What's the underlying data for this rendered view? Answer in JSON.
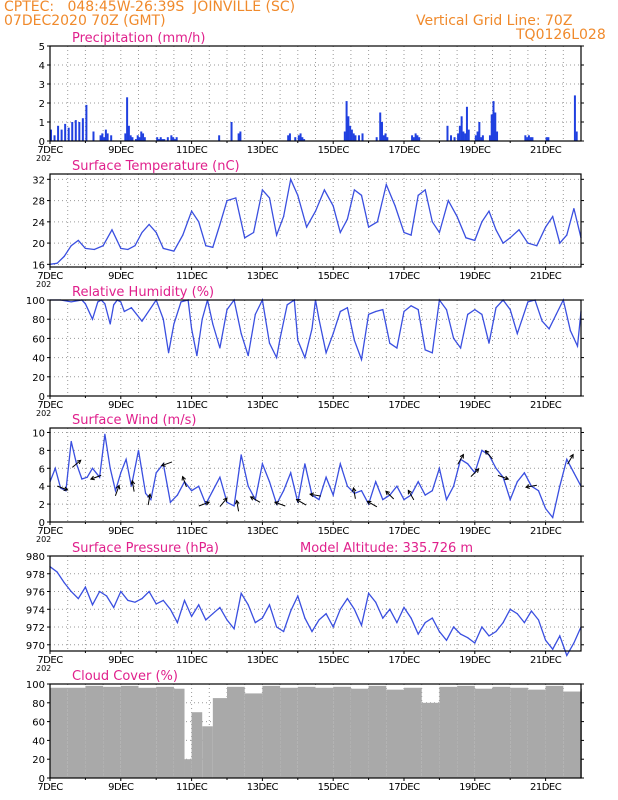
{
  "header": {
    "line1": "CPTEC:   048:45W-26:39S  JOINVILLE (SC)",
    "line2": "07DEC2020 70Z (GMT)",
    "vertical_grid": "Vertical Grid Line: 70Z",
    "code": "TQ0126L028",
    "model_altitude": "Model Altitude: 335.726 m"
  },
  "colors": {
    "header": "#f08a2c",
    "title": "#e0208c",
    "line": "#3a4fe0",
    "bar": "#2040e0",
    "cloud": "#a9a9a9"
  },
  "x_ticks": [
    "7DEC",
    "9DEC",
    "11DEC",
    "13DEC",
    "15DEC",
    "17DEC",
    "19DEC",
    "21DEC"
  ],
  "x_tick_stub": "202",
  "chart_data": [
    {
      "type": "bar",
      "title": "Precipitation (mm/h)",
      "ylim": [
        0,
        5
      ],
      "y_ticks": [
        "0",
        "1",
        "2",
        "3",
        "4",
        "5"
      ],
      "x_days": [
        0,
        0.1,
        0.2,
        0.3,
        0.4,
        0.5,
        0.6,
        0.7,
        0.8,
        0.9,
        1.0,
        1.2,
        1.4,
        1.45,
        1.5,
        1.55,
        1.6,
        1.7,
        2.1,
        2.15,
        2.2,
        2.25,
        2.3,
        2.4,
        2.45,
        2.5,
        2.55,
        2.6,
        2.65,
        3.0,
        3.05,
        3.1,
        3.15,
        3.2,
        3.3,
        3.4,
        3.45,
        3.5,
        3.55,
        4.75,
        5.1,
        5.3,
        5.35,
        6.7,
        6.75,
        6.9,
        7.0,
        7.05,
        7.1,
        7.15,
        8.3,
        8.35,
        8.4,
        8.45,
        8.5,
        8.55,
        8.6,
        8.7,
        8.8,
        9.2,
        9.3,
        9.35,
        9.4,
        9.45,
        9.5,
        10.2,
        10.25,
        10.3,
        10.35,
        10.4,
        11.2,
        11.3,
        11.4,
        11.5,
        11.55,
        11.6,
        11.65,
        11.7,
        11.75,
        11.8,
        12.0,
        12.05,
        12.1,
        12.15,
        12.2,
        12.4,
        12.45,
        12.5,
        12.55,
        12.6,
        13.4,
        13.45,
        13.5,
        13.55,
        13.6,
        14.0,
        14.05,
        14.8,
        14.85
      ],
      "values": [
        0.6,
        0.3,
        0.8,
        0.6,
        0.9,
        0.7,
        1.0,
        1.1,
        1.0,
        1.2,
        1.9,
        0.5,
        0.3,
        0.4,
        0.2,
        0.6,
        0.4,
        0.3,
        0.4,
        2.3,
        0.8,
        0.3,
        0.2,
        0.1,
        0.3,
        0.2,
        0.5,
        0.4,
        0.2,
        0.2,
        0.1,
        0.2,
        0.1,
        0.1,
        0.2,
        0.3,
        0.2,
        0.1,
        0.2,
        0.3,
        1.0,
        0.4,
        0.5,
        0.3,
        0.4,
        0.2,
        0.3,
        0.4,
        0.2,
        0.1,
        0.5,
        2.1,
        1.3,
        0.8,
        0.6,
        0.4,
        0.3,
        0.3,
        0.4,
        0.2,
        1.5,
        1.0,
        0.3,
        0.4,
        0.2,
        0.3,
        0.2,
        0.4,
        0.3,
        0.2,
        0.8,
        0.3,
        0.2,
        0.4,
        0.8,
        1.3,
        0.5,
        0.4,
        1.8,
        0.6,
        0.3,
        0.5,
        1.0,
        0.2,
        0.3,
        0.3,
        1.4,
        2.1,
        1.5,
        0.5,
        0.3,
        0.2,
        0.3,
        0.2,
        0.2,
        0.2,
        0.2,
        2.4,
        0.5
      ]
    },
    {
      "type": "line",
      "title": "Surface Temperature (nC)",
      "ylim": [
        15.5,
        33
      ],
      "y_ticks": [
        "16",
        "20",
        "24",
        "28",
        "32"
      ],
      "x_days": [
        0,
        0.2,
        0.4,
        0.6,
        0.8,
        1.0,
        1.25,
        1.5,
        1.75,
        2.0,
        2.2,
        2.4,
        2.6,
        2.8,
        3.0,
        3.2,
        3.5,
        3.75,
        4.0,
        4.2,
        4.4,
        4.6,
        4.8,
        5.0,
        5.25,
        5.5,
        5.75,
        6.0,
        6.2,
        6.4,
        6.6,
        6.8,
        7.0,
        7.25,
        7.5,
        7.75,
        8.0,
        8.2,
        8.4,
        8.6,
        8.8,
        9.0,
        9.25,
        9.5,
        9.75,
        10.0,
        10.2,
        10.4,
        10.6,
        10.8,
        11.0,
        11.25,
        11.5,
        11.75,
        12.0,
        12.2,
        12.4,
        12.6,
        12.8,
        13.0,
        13.25,
        13.5,
        13.75,
        14.0,
        14.2,
        14.4,
        14.6,
        14.8,
        15.0
      ],
      "values": [
        16.0,
        16.2,
        17.5,
        19.5,
        20.5,
        19.0,
        18.8,
        19.5,
        22.5,
        19.0,
        18.8,
        19.5,
        22.0,
        23.5,
        22.0,
        19.0,
        18.5,
        21.5,
        26.0,
        24.0,
        19.5,
        19.2,
        23.5,
        28.0,
        28.5,
        21.0,
        22.0,
        30.0,
        28.5,
        21.5,
        25.0,
        32.0,
        29.0,
        23.0,
        26.0,
        30.0,
        27.0,
        22.0,
        24.5,
        30.0,
        29.0,
        23.0,
        24.0,
        31.0,
        27.0,
        22.0,
        21.5,
        29.0,
        30.0,
        24.0,
        22.0,
        28.0,
        25.0,
        21.0,
        20.5,
        24.0,
        26.0,
        22.5,
        20.0,
        21.0,
        22.5,
        20.0,
        19.5,
        23.0,
        25.0,
        20.0,
        21.5,
        26.5,
        21.0
      ]
    },
    {
      "type": "line",
      "title": "Relative Humidity (%)",
      "ylim": [
        0,
        100
      ],
      "y_ticks": [
        "0",
        "20",
        "40",
        "60",
        "80",
        "100"
      ],
      "x_days": [
        0,
        0.3,
        0.6,
        0.9,
        1.0,
        1.2,
        1.35,
        1.45,
        1.55,
        1.7,
        1.8,
        1.9,
        2.0,
        2.1,
        2.3,
        2.6,
        3.0,
        3.2,
        3.35,
        3.5,
        3.7,
        3.9,
        4.0,
        4.15,
        4.3,
        4.45,
        4.6,
        4.8,
        5.0,
        5.2,
        5.4,
        5.6,
        5.8,
        6.0,
        6.2,
        6.4,
        6.5,
        6.7,
        6.9,
        7.0,
        7.2,
        7.4,
        7.5,
        7.6,
        7.8,
        8.0,
        8.2,
        8.4,
        8.6,
        8.8,
        9.0,
        9.2,
        9.4,
        9.6,
        9.8,
        10.0,
        10.2,
        10.4,
        10.6,
        10.8,
        11.0,
        11.2,
        11.4,
        11.6,
        11.8,
        12.0,
        12.2,
        12.4,
        12.6,
        12.8,
        13.0,
        13.2,
        13.5,
        13.7,
        13.9,
        14.1,
        14.3,
        14.5,
        14.7,
        14.9,
        15.0
      ],
      "values": [
        100,
        100,
        98,
        100,
        96,
        80,
        98,
        100,
        96,
        75,
        95,
        100,
        98,
        88,
        92,
        78,
        100,
        80,
        45,
        75,
        98,
        100,
        70,
        42,
        80,
        100,
        75,
        50,
        90,
        100,
        65,
        42,
        85,
        100,
        55,
        40,
        60,
        95,
        100,
        58,
        40,
        70,
        100,
        80,
        45,
        65,
        88,
        92,
        58,
        38,
        85,
        88,
        90,
        55,
        50,
        88,
        94,
        90,
        48,
        45,
        100,
        90,
        60,
        50,
        85,
        90,
        85,
        55,
        92,
        100,
        90,
        65,
        98,
        100,
        78,
        70,
        85,
        100,
        68,
        52,
        88
      ]
    },
    {
      "type": "line",
      "title": "Surface Wind (m/s)",
      "ylim": [
        0,
        10.5
      ],
      "y_ticks": [
        "0",
        "2",
        "4",
        "6",
        "8",
        "10"
      ],
      "x_days": [
        0,
        0.15,
        0.3,
        0.45,
        0.6,
        0.75,
        0.9,
        1.05,
        1.2,
        1.4,
        1.55,
        1.7,
        1.85,
        2.0,
        2.15,
        2.3,
        2.5,
        2.7,
        2.85,
        3.0,
        3.2,
        3.4,
        3.6,
        3.8,
        4.0,
        4.2,
        4.4,
        4.6,
        4.8,
        5.0,
        5.2,
        5.4,
        5.6,
        5.8,
        6.0,
        6.2,
        6.4,
        6.6,
        6.8,
        7.0,
        7.2,
        7.4,
        7.6,
        7.8,
        8.0,
        8.2,
        8.4,
        8.6,
        8.8,
        9.0,
        9.2,
        9.4,
        9.6,
        9.8,
        10.0,
        10.2,
        10.4,
        10.6,
        10.8,
        11.0,
        11.2,
        11.4,
        11.6,
        11.8,
        12.0,
        12.2,
        12.4,
        12.6,
        12.8,
        13.0,
        13.2,
        13.4,
        13.6,
        13.8,
        14.0,
        14.2,
        14.4,
        14.6,
        14.8,
        15.0
      ],
      "values": [
        4.5,
        6.0,
        3.8,
        3.5,
        9.0,
        6.5,
        4.8,
        5.0,
        6.0,
        5.0,
        9.8,
        6.0,
        3.5,
        5.5,
        7.0,
        4.0,
        8.0,
        3.2,
        2.5,
        5.5,
        6.5,
        2.2,
        3.0,
        4.5,
        3.5,
        4.0,
        2.0,
        3.5,
        5.0,
        2.2,
        1.8,
        7.5,
        4.0,
        2.5,
        6.5,
        4.5,
        2.0,
        3.5,
        5.5,
        2.2,
        6.5,
        3.0,
        2.5,
        5.0,
        3.0,
        6.5,
        4.0,
        3.2,
        3.5,
        2.0,
        4.5,
        2.5,
        3.0,
        4.0,
        2.5,
        3.0,
        4.5,
        3.0,
        3.5,
        6.0,
        2.5,
        4.0,
        7.0,
        6.5,
        5.5,
        8.0,
        7.5,
        6.0,
        5.0,
        2.5,
        4.5,
        5.5,
        4.0,
        3.5,
        1.5,
        0.5,
        4.0,
        7.0,
        5.5,
        4.0
      ],
      "arrows": [
        {
          "day": 0.35,
          "dir": 20
        },
        {
          "day": 0.75,
          "dir": -40
        },
        {
          "day": 1.3,
          "dir": 160
        },
        {
          "day": 1.9,
          "dir": -70
        },
        {
          "day": 2.35,
          "dir": -100
        },
        {
          "day": 2.8,
          "dir": -80
        },
        {
          "day": 3.3,
          "dir": 160
        },
        {
          "day": 3.8,
          "dir": -110
        },
        {
          "day": 4.35,
          "dir": -20
        },
        {
          "day": 4.9,
          "dir": -50
        },
        {
          "day": 5.3,
          "dir": -100
        },
        {
          "day": 5.8,
          "dir": -150
        },
        {
          "day": 6.5,
          "dir": -160
        },
        {
          "day": 7.1,
          "dir": -150
        },
        {
          "day": 7.5,
          "dir": -170
        },
        {
          "day": 8.6,
          "dir": -100
        },
        {
          "day": 9.1,
          "dir": -150
        },
        {
          "day": 9.6,
          "dir": -135
        },
        {
          "day": 10.2,
          "dir": -120
        },
        {
          "day": 11.6,
          "dir": -60
        },
        {
          "day": 12.0,
          "dir": -45
        },
        {
          "day": 12.4,
          "dir": -130
        },
        {
          "day": 12.8,
          "dir": 20
        },
        {
          "day": 13.6,
          "dir": 170
        },
        {
          "day": 14.7,
          "dir": -60
        }
      ]
    },
    {
      "type": "line",
      "title": "Surface Pressure (hPa)",
      "ylim": [
        969.3,
        980
      ],
      "y_ticks": [
        "970",
        "972",
        "974",
        "976",
        "978",
        "980"
      ],
      "x_days": [
        0,
        0.2,
        0.4,
        0.6,
        0.8,
        1.0,
        1.2,
        1.4,
        1.6,
        1.8,
        2.0,
        2.2,
        2.4,
        2.6,
        2.8,
        3.0,
        3.2,
        3.4,
        3.6,
        3.8,
        4.0,
        4.2,
        4.4,
        4.6,
        4.8,
        5.0,
        5.2,
        5.4,
        5.6,
        5.8,
        6.0,
        6.2,
        6.4,
        6.6,
        6.8,
        7.0,
        7.2,
        7.4,
        7.6,
        7.8,
        8.0,
        8.2,
        8.4,
        8.6,
        8.8,
        9.0,
        9.2,
        9.4,
        9.6,
        9.8,
        10.0,
        10.2,
        10.4,
        10.6,
        10.8,
        11.0,
        11.2,
        11.4,
        11.6,
        11.8,
        12.0,
        12.2,
        12.4,
        12.6,
        12.8,
        13.0,
        13.2,
        13.4,
        13.6,
        13.8,
        14.0,
        14.2,
        14.4,
        14.6,
        14.8,
        15.0
      ],
      "values": [
        978.8,
        978.2,
        977.0,
        976.0,
        975.2,
        976.5,
        974.5,
        976.0,
        975.5,
        974.2,
        976.0,
        975.0,
        974.8,
        975.2,
        976.0,
        974.6,
        975.0,
        974.0,
        972.5,
        975.0,
        973.2,
        974.5,
        972.8,
        973.5,
        974.2,
        972.8,
        971.8,
        975.8,
        974.5,
        972.5,
        973.0,
        974.5,
        972.0,
        971.5,
        973.8,
        975.5,
        973.0,
        971.5,
        972.8,
        973.5,
        972.0,
        974.0,
        975.2,
        974.0,
        972.2,
        975.8,
        974.8,
        973.0,
        974.0,
        972.5,
        974.2,
        973.0,
        971.2,
        972.5,
        973.0,
        971.5,
        970.5,
        972.0,
        971.2,
        970.8,
        970.2,
        972.0,
        971.0,
        971.5,
        972.5,
        974.0,
        973.5,
        972.5,
        973.8,
        972.8,
        970.5,
        969.5,
        971.0,
        968.8,
        970.2,
        972.0
      ]
    },
    {
      "type": "bar",
      "title": "Cloud Cover (%)",
      "ylim": [
        0,
        100
      ],
      "y_ticks": [
        "0",
        "20",
        "40",
        "60",
        "80",
        "100"
      ],
      "x_days": [
        0,
        0.5,
        1.0,
        1.5,
        2.0,
        2.5,
        3.0,
        3.5,
        3.8,
        4.0,
        4.3,
        4.6,
        5.0,
        5.5,
        6.0,
        6.5,
        7.0,
        7.5,
        8.0,
        8.5,
        9.0,
        9.5,
        10.0,
        10.5,
        11.0,
        11.5,
        12.0,
        12.5,
        13.0,
        13.5,
        14.0,
        14.5,
        15.0
      ],
      "values": [
        96,
        96,
        98,
        97,
        98,
        96,
        97,
        95,
        20,
        70,
        55,
        85,
        97,
        90,
        98,
        96,
        97,
        96,
        97,
        95,
        98,
        94,
        96,
        80,
        97,
        98,
        95,
        97,
        96,
        94,
        98,
        92,
        95
      ]
    }
  ]
}
